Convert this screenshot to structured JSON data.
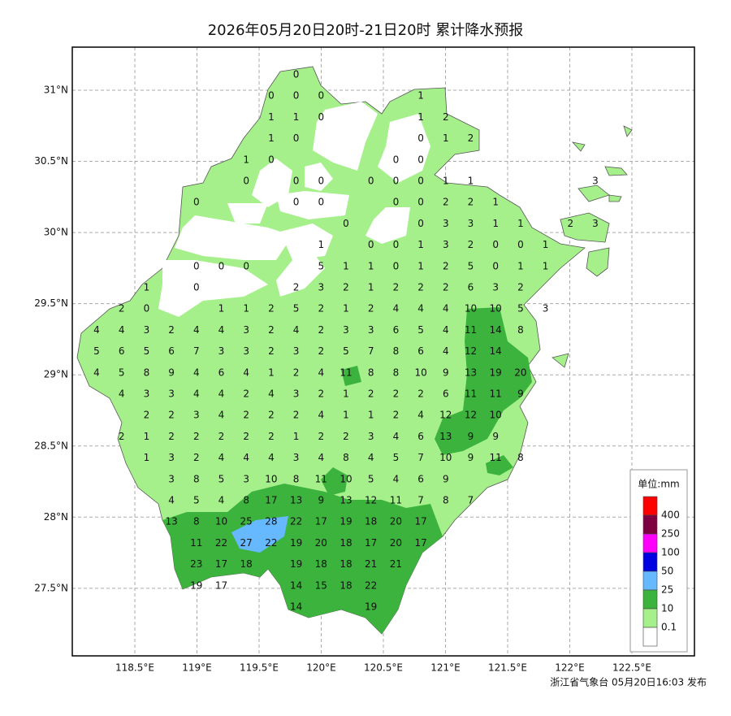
{
  "map": {
    "title": "2026年05月20日20时-21日20时 累计降水预报",
    "footer": "浙江省气象台 05月20日16:03 发布",
    "xticks": [
      {
        "value": 118.5,
        "label": "118.5°E"
      },
      {
        "value": 119,
        "label": "119°E"
      },
      {
        "value": 119.5,
        "label": "119.5°E"
      },
      {
        "value": 120,
        "label": "120°E"
      },
      {
        "value": 120.5,
        "label": "120.5°E"
      },
      {
        "value": 121,
        "label": "121°E"
      },
      {
        "value": 121.5,
        "label": "121.5°E"
      },
      {
        "value": 122,
        "label": "122°E"
      },
      {
        "value": 122.5,
        "label": "122.5°E"
      }
    ],
    "yticks": [
      {
        "value": 31,
        "label": "31°N"
      },
      {
        "value": 30.5,
        "label": "30.5°N"
      },
      {
        "value": 30,
        "label": "30°N"
      },
      {
        "value": 29.5,
        "label": "29.5°N"
      },
      {
        "value": 29,
        "label": "29°N"
      },
      {
        "value": 28.5,
        "label": "28.5°N"
      },
      {
        "value": 28,
        "label": "28°N"
      },
      {
        "value": 27.5,
        "label": "27.5°N"
      }
    ],
    "grid": true,
    "legend": {
      "title": "单位:mm",
      "thresholds": [
        400,
        250,
        100,
        50,
        25,
        10,
        0.1
      ],
      "colors": [
        "#ff0000",
        "#7f0040",
        "#ff00ff",
        "#0000e0",
        "#66b8ff",
        "#3cb33c",
        "#a6f08c",
        "#ffffff"
      ]
    },
    "stations": [
      [
        null,
        null,
        null,
        null,
        null,
        null,
        null,
        null,
        0,
        null,
        null,
        null,
        null,
        null,
        null,
        null,
        null,
        null,
        null,
        null,
        null
      ],
      [
        null,
        null,
        null,
        null,
        null,
        null,
        null,
        0,
        0,
        0,
        null,
        null,
        null,
        1,
        null,
        null,
        null,
        null,
        null,
        null,
        null
      ],
      [
        null,
        null,
        null,
        null,
        null,
        null,
        null,
        1,
        1,
        0,
        null,
        null,
        null,
        1,
        2,
        null,
        null,
        null,
        null,
        null,
        null
      ],
      [
        null,
        null,
        null,
        null,
        null,
        null,
        null,
        1,
        0,
        null,
        null,
        null,
        null,
        0,
        1,
        2,
        null,
        null,
        null,
        null,
        null
      ],
      [
        null,
        null,
        null,
        null,
        null,
        null,
        1,
        0,
        null,
        null,
        null,
        null,
        0,
        0,
        null,
        null,
        null,
        null,
        null,
        null,
        null
      ],
      [
        null,
        null,
        null,
        null,
        null,
        null,
        0,
        null,
        0,
        0,
        null,
        0,
        0,
        0,
        1,
        1,
        null,
        null,
        null,
        null,
        3
      ],
      [
        null,
        null,
        null,
        null,
        0,
        null,
        null,
        null,
        0,
        0,
        null,
        null,
        0,
        0,
        2,
        2,
        1,
        null,
        null,
        null,
        null
      ],
      [
        null,
        null,
        null,
        null,
        null,
        null,
        null,
        null,
        null,
        null,
        0,
        null,
        null,
        0,
        3,
        3,
        1,
        1,
        null,
        2,
        3
      ],
      [
        null,
        null,
        null,
        null,
        null,
        null,
        null,
        null,
        null,
        1,
        null,
        0,
        0,
        1,
        3,
        2,
        0,
        0,
        1,
        null,
        null
      ],
      [
        null,
        null,
        null,
        null,
        0,
        0,
        0,
        null,
        null,
        5,
        1,
        1,
        0,
        1,
        2,
        5,
        0,
        1,
        1,
        null,
        null
      ],
      [
        null,
        null,
        1,
        null,
        0,
        null,
        null,
        null,
        2,
        3,
        2,
        1,
        2,
        2,
        2,
        6,
        3,
        2,
        null,
        null,
        null
      ],
      [
        null,
        2,
        0,
        null,
        null,
        1,
        1,
        2,
        5,
        2,
        1,
        2,
        4,
        4,
        4,
        10,
        10,
        5,
        3,
        null,
        null
      ],
      [
        4,
        4,
        3,
        2,
        4,
        4,
        3,
        2,
        4,
        2,
        3,
        3,
        6,
        5,
        4,
        11,
        14,
        8,
        null,
        null,
        null
      ],
      [
        5,
        6,
        5,
        6,
        7,
        3,
        3,
        2,
        3,
        2,
        5,
        7,
        8,
        6,
        4,
        12,
        14,
        null,
        null,
        null,
        null
      ],
      [
        4,
        5,
        8,
        9,
        4,
        6,
        4,
        1,
        2,
        4,
        11,
        8,
        8,
        10,
        9,
        13,
        19,
        20,
        null,
        null,
        null
      ],
      [
        null,
        4,
        3,
        3,
        4,
        4,
        2,
        4,
        3,
        2,
        1,
        2,
        2,
        2,
        6,
        11,
        11,
        9,
        null,
        null,
        null
      ],
      [
        null,
        null,
        2,
        2,
        3,
        4,
        2,
        2,
        2,
        4,
        1,
        1,
        2,
        4,
        12,
        12,
        10,
        null,
        null,
        null,
        null
      ],
      [
        null,
        2,
        1,
        2,
        2,
        2,
        2,
        2,
        1,
        2,
        2,
        3,
        4,
        6,
        13,
        9,
        9,
        null,
        null,
        null,
        null
      ],
      [
        null,
        null,
        1,
        3,
        2,
        4,
        4,
        4,
        3,
        4,
        8,
        4,
        5,
        7,
        10,
        9,
        11,
        8,
        null,
        null,
        null
      ],
      [
        null,
        null,
        null,
        3,
        8,
        5,
        3,
        10,
        8,
        11,
        10,
        5,
        4,
        6,
        9,
        null,
        null,
        null,
        null,
        null,
        null
      ],
      [
        null,
        null,
        null,
        4,
        5,
        4,
        8,
        17,
        13,
        9,
        13,
        12,
        11,
        7,
        8,
        7,
        null,
        null,
        null,
        null,
        null
      ],
      [
        null,
        null,
        null,
        13,
        8,
        10,
        25,
        28,
        22,
        17,
        19,
        18,
        20,
        17,
        null,
        null,
        null,
        null,
        null,
        null,
        null
      ],
      [
        null,
        null,
        null,
        null,
        11,
        22,
        27,
        22,
        19,
        20,
        18,
        17,
        20,
        17,
        null,
        null,
        null,
        null,
        null,
        null,
        null
      ],
      [
        null,
        null,
        null,
        null,
        23,
        17,
        18,
        null,
        19,
        18,
        18,
        21,
        21,
        null,
        null,
        null,
        null,
        null,
        null,
        null,
        null
      ],
      [
        null,
        null,
        null,
        null,
        19,
        17,
        null,
        null,
        14,
        15,
        18,
        22,
        null,
        null,
        null,
        null,
        null,
        null,
        null,
        null,
        null
      ],
      [
        null,
        null,
        null,
        null,
        null,
        null,
        null,
        null,
        14,
        null,
        null,
        19,
        null,
        null,
        null,
        null,
        null,
        null,
        null,
        null,
        null
      ]
    ]
  }
}
